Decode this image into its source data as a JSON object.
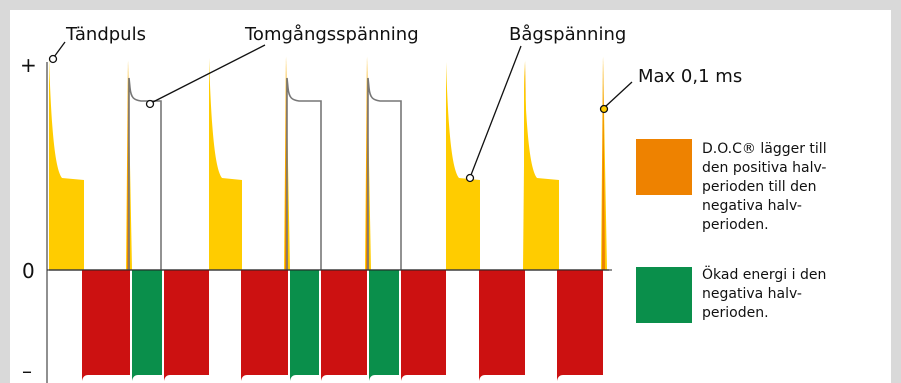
{
  "axis": {
    "plus": "+",
    "zero": "0",
    "minus": "–"
  },
  "labels": {
    "tandpuls": "Tändpuls",
    "tomgang": "Tomgångsspänning",
    "bagspanning": "Bågspänning",
    "max": "Max 0,1 ms"
  },
  "legend": [
    {
      "color": "#ee8200",
      "text": "D.O.C® lägger till\nden positiva halv-\nperioden till den\nnegativa halv-\nperioden."
    },
    {
      "color": "#0a8f4b",
      "text": "Ökad energi i den\nnegativa halv-\nperioden."
    }
  ],
  "colors": {
    "yellow": "#ffcc00",
    "orange": "#ee8200",
    "red": "#cc1111",
    "green": "#0a8f4b",
    "line": "#777777",
    "frame": "#d9d9d9"
  }
}
